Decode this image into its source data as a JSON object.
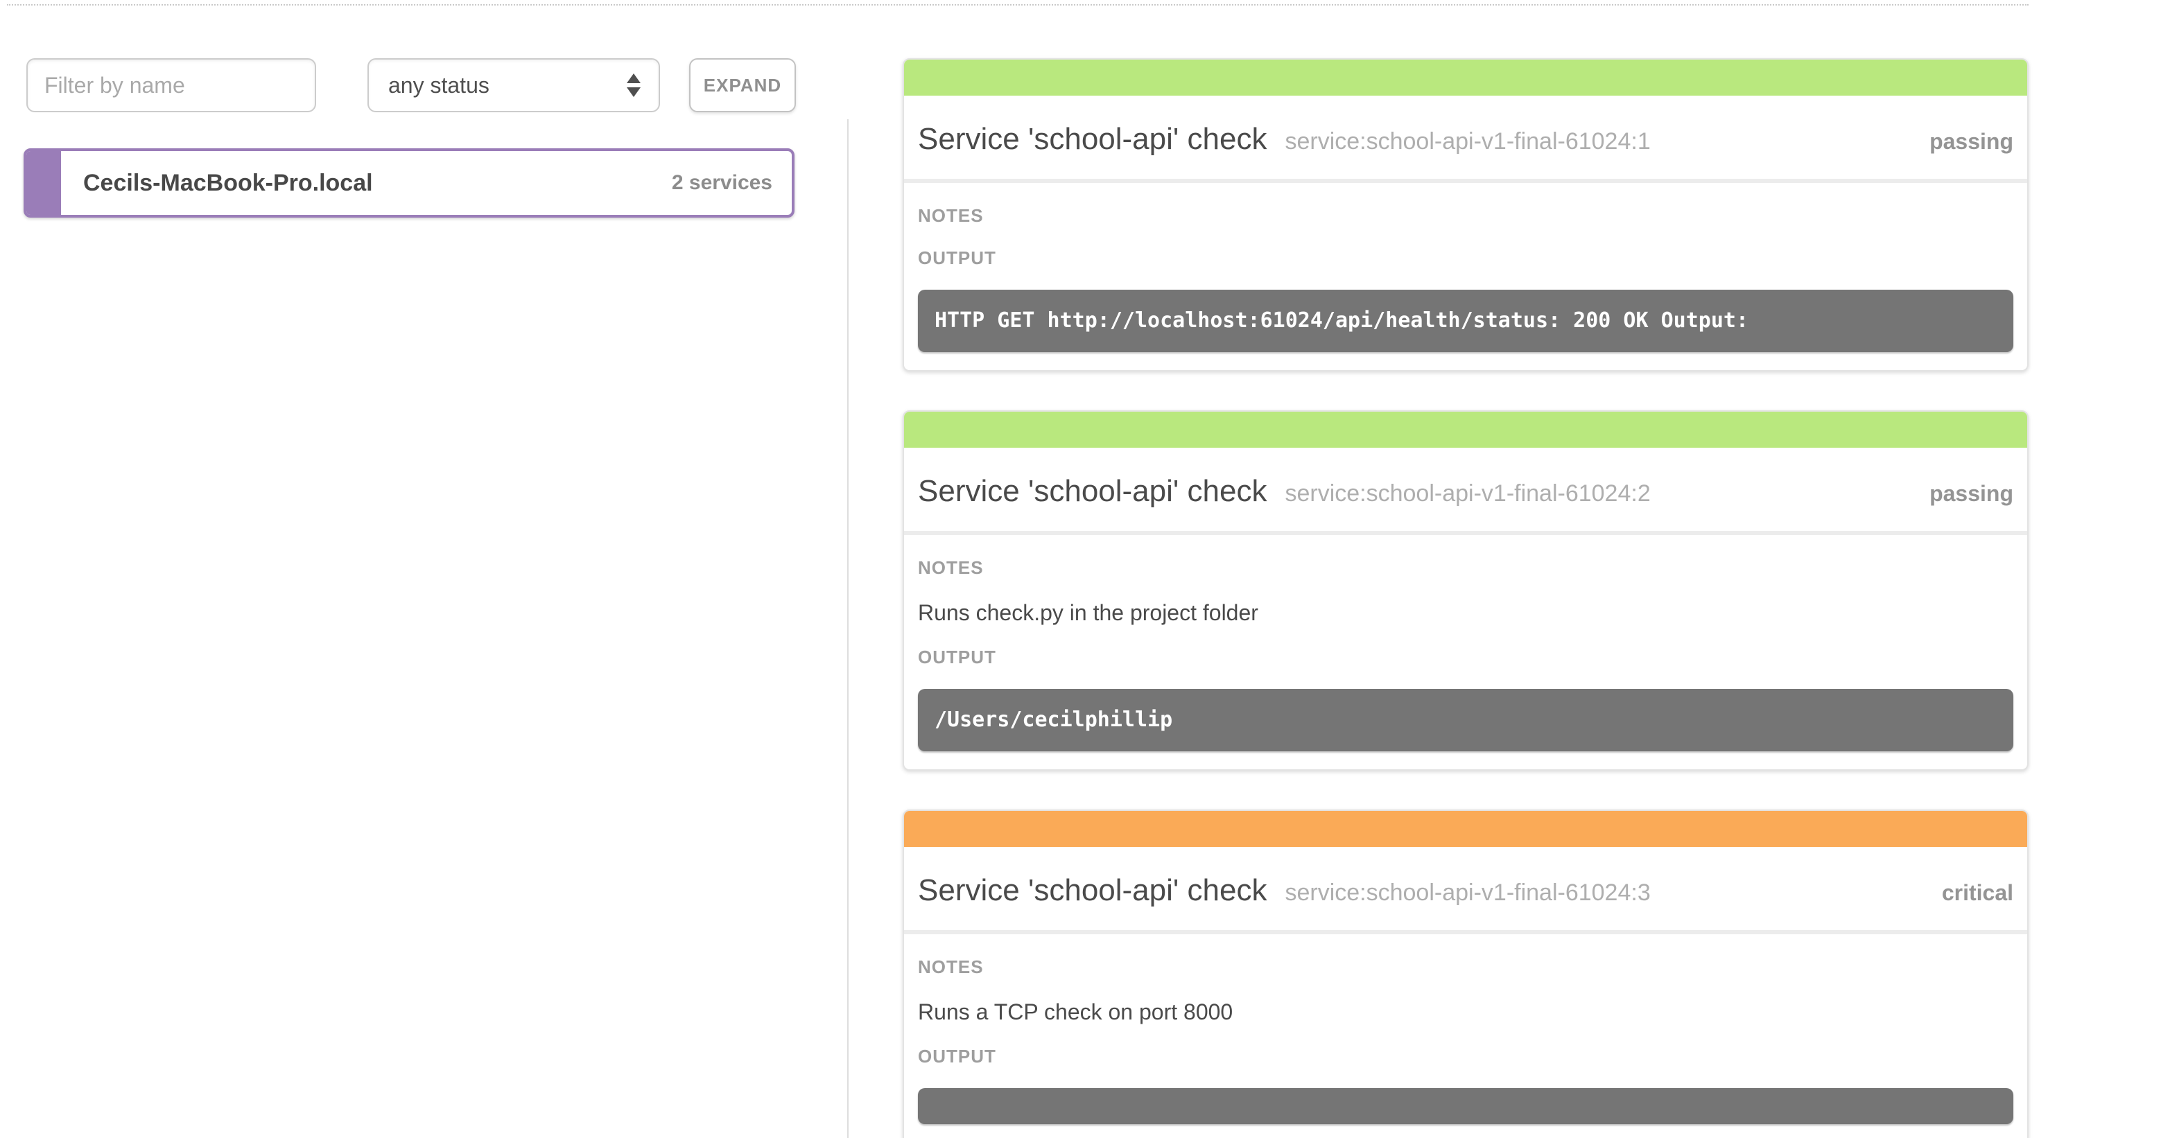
{
  "colors": {
    "passing": "#b9e87e",
    "critical": "#faaa57",
    "purple": "#9a7db8",
    "outputbg": "#757575"
  },
  "filters": {
    "name_placeholder": "Filter by name",
    "status_value": "any status",
    "expand_label": "EXPAND"
  },
  "node": {
    "name": "Cecils-MacBook-Pro.local",
    "services_count": "2 services"
  },
  "labels": {
    "notes": "NOTES",
    "output": "OUTPUT"
  },
  "checks": [
    {
      "title": "Service 'school-api' check",
      "id": "service:school-api-v1-final-61024:1",
      "status": "passing",
      "notes": "",
      "output": "HTTP GET http://localhost:61024/api/health/status: 200 OK Output:"
    },
    {
      "title": "Service 'school-api' check",
      "id": "service:school-api-v1-final-61024:2",
      "status": "passing",
      "notes": "Runs check.py in the project folder",
      "output": "/Users/cecilphillip"
    },
    {
      "title": "Service 'school-api' check",
      "id": "service:school-api-v1-final-61024:3",
      "status": "critical",
      "notes": "Runs a TCP check on port 8000",
      "output": ""
    }
  ]
}
